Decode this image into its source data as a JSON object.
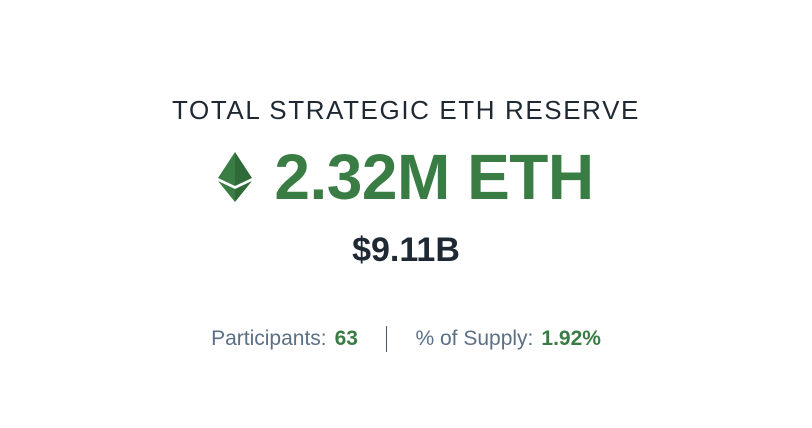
{
  "reserve": {
    "title": "TOTAL STRATEGIC ETH RESERVE",
    "icon": "ethereum-icon",
    "amount": "2.32M ETH",
    "usd_value": "$9.11B"
  },
  "stats": {
    "participants_label": "Participants:",
    "participants_value": "63",
    "supply_label": "% of Supply:",
    "supply_value": "1.92%"
  },
  "colors": {
    "accent_green": "#3a7d44",
    "text_dark": "#1f2933",
    "text_muted": "#5b6f85"
  }
}
